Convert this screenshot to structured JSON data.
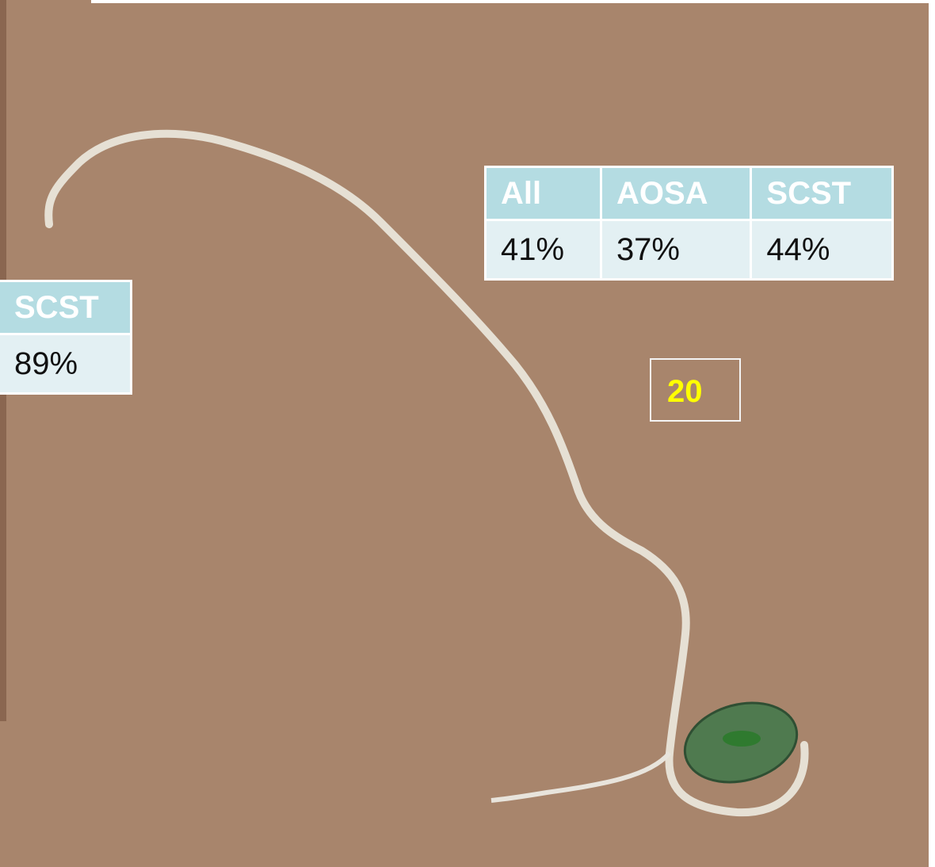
{
  "table_main": {
    "header": [
      "All",
      "AOSA",
      "SCST"
    ],
    "row": [
      "41%",
      "37%",
      "44%"
    ]
  },
  "table_side": {
    "header": "SCST",
    "row": "89%"
  },
  "box_label": "20"
}
